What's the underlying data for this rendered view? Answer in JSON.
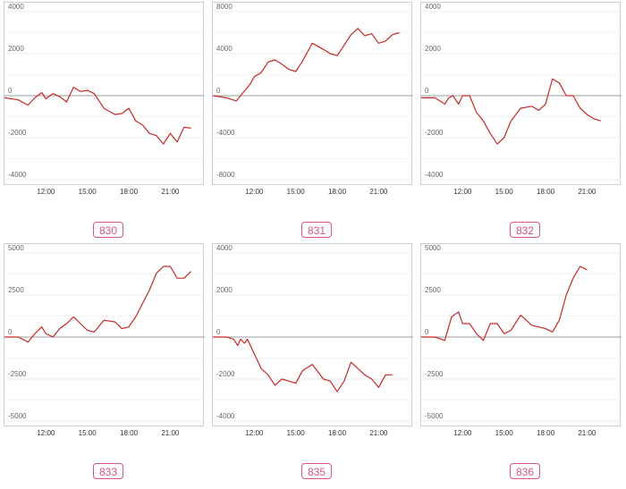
{
  "chart_data": [
    {
      "type": "line",
      "label": "830",
      "yticks": [
        4000,
        2000,
        0,
        -2000,
        -4000
      ],
      "ylim": [
        -4000,
        4000
      ],
      "xticks": [
        "12:00",
        "15:00",
        "18:00",
        "21:00"
      ],
      "x": [
        9.0,
        10.0,
        10.7,
        11.2,
        11.7,
        12.0,
        12.5,
        13.0,
        13.5,
        14.0,
        14.5,
        15.0,
        15.5,
        16.2,
        17.0,
        17.5,
        18.0,
        18.5,
        19.0,
        19.5,
        20.0,
        20.5,
        21.0,
        21.5,
        22.0,
        22.5
      ],
      "y": [
        -100,
        -200,
        -450,
        -100,
        150,
        -150,
        100,
        -50,
        -300,
        400,
        200,
        250,
        100,
        -600,
        -900,
        -850,
        -600,
        -1200,
        -1400,
        -1800,
        -1900,
        -2300,
        -1800,
        -2200,
        -1500,
        -1550
      ],
      "color": "#c62828"
    },
    {
      "type": "line",
      "label": "831",
      "yticks": [
        8000,
        4000,
        0,
        -4000,
        -8000
      ],
      "ylim": [
        -8000,
        8000
      ],
      "xticks": [
        "12:00",
        "15:00",
        "18:00",
        "21:00"
      ],
      "x": [
        9.0,
        10.0,
        10.7,
        11.2,
        11.7,
        12.0,
        12.5,
        13.0,
        13.5,
        14.0,
        14.5,
        15.0,
        15.5,
        16.2,
        17.0,
        17.5,
        18.0,
        18.5,
        19.0,
        19.5,
        20.0,
        20.5,
        21.0,
        21.5,
        22.0,
        22.5
      ],
      "y": [
        0,
        -200,
        -500,
        300,
        1100,
        1800,
        2200,
        3200,
        3400,
        3000,
        2500,
        2300,
        3300,
        5000,
        4400,
        4000,
        3800,
        4800,
        5800,
        6400,
        5700,
        5900,
        5000,
        5200,
        5800,
        6000
      ],
      "color": "#c62828"
    },
    {
      "type": "line",
      "label": "832",
      "yticks": [
        4000,
        2000,
        0,
        -2000,
        -4000
      ],
      "ylim": [
        -4000,
        4000
      ],
      "xticks": [
        "12:00",
        "15:00",
        "18:00",
        "21:00"
      ],
      "x": [
        9.0,
        10.0,
        10.7,
        11.0,
        11.3,
        11.7,
        12.0,
        12.5,
        13.0,
        13.5,
        14.0,
        14.5,
        15.0,
        15.5,
        16.2,
        17.0,
        17.5,
        18.0,
        18.5,
        19.0,
        19.5,
        20.0,
        20.5,
        21.0,
        21.5,
        22.0
      ],
      "y": [
        -100,
        -100,
        -400,
        -100,
        0,
        -400,
        0,
        0,
        -800,
        -1200,
        -1800,
        -2300,
        -2000,
        -1200,
        -600,
        -500,
        -700,
        -400,
        800,
        600,
        0,
        0,
        -600,
        -900,
        -1100,
        -1200
      ],
      "color": "#c62828"
    },
    {
      "type": "line",
      "label": "833",
      "yticks": [
        5000,
        2500,
        0,
        -2500,
        -5000
      ],
      "ylim": [
        -5000,
        5000
      ],
      "xticks": [
        "12:00",
        "15:00",
        "18:00",
        "21:00"
      ],
      "x": [
        9.0,
        10.0,
        10.7,
        11.2,
        11.7,
        12.0,
        12.5,
        13.0,
        13.5,
        14.0,
        14.5,
        15.0,
        15.5,
        16.2,
        17.0,
        17.5,
        18.0,
        18.5,
        19.0,
        19.5,
        20.0,
        20.5,
        21.0,
        21.5,
        22.0,
        22.5
      ],
      "y": [
        0,
        0,
        -300,
        200,
        600,
        200,
        0,
        500,
        800,
        1200,
        800,
        400,
        300,
        1000,
        900,
        500,
        600,
        1200,
        2000,
        2800,
        3800,
        4200,
        4200,
        3500,
        3500,
        3900
      ],
      "color": "#c62828"
    },
    {
      "type": "line",
      "label": "835",
      "yticks": [
        4000,
        2000,
        0,
        -2000,
        -4000
      ],
      "ylim": [
        -4000,
        4000
      ],
      "xticks": [
        "12:00",
        "15:00",
        "18:00",
        "21:00"
      ],
      "x": [
        9.0,
        10.0,
        10.5,
        10.8,
        11.0,
        11.3,
        11.5,
        12.0,
        12.5,
        13.0,
        13.5,
        14.0,
        14.5,
        15.0,
        15.5,
        16.2,
        17.0,
        17.5,
        18.0,
        18.5,
        19.0,
        19.5,
        20.0,
        20.5,
        21.0,
        21.5,
        22.0
      ],
      "y": [
        0,
        0,
        -100,
        -400,
        -100,
        -300,
        -100,
        -800,
        -1500,
        -1800,
        -2300,
        -2000,
        -2100,
        -2200,
        -1600,
        -1300,
        -2000,
        -2100,
        -2600,
        -2100,
        -1200,
        -1500,
        -1800,
        -2000,
        -2400,
        -1800,
        -1800
      ],
      "color": "#c62828"
    },
    {
      "type": "line",
      "label": "836",
      "yticks": [
        5000,
        2500,
        0,
        -2500,
        -5000
      ],
      "ylim": [
        -5000,
        5000
      ],
      "xticks": [
        "12:00",
        "15:00",
        "18:00",
        "21:00"
      ],
      "x": [
        9.0,
        10.0,
        10.7,
        11.2,
        11.7,
        12.0,
        12.5,
        13.0,
        13.5,
        14.0,
        14.5,
        15.0,
        15.5,
        16.2,
        17.0,
        17.5,
        18.0,
        18.5,
        19.0,
        19.5,
        20.0,
        20.5,
        21.0
      ],
      "y": [
        0,
        0,
        -200,
        1200,
        1500,
        800,
        800,
        200,
        -200,
        800,
        800,
        200,
        400,
        1300,
        700,
        600,
        500,
        300,
        1000,
        2500,
        3500,
        4200,
        4000
      ],
      "color": "#c62828"
    }
  ]
}
